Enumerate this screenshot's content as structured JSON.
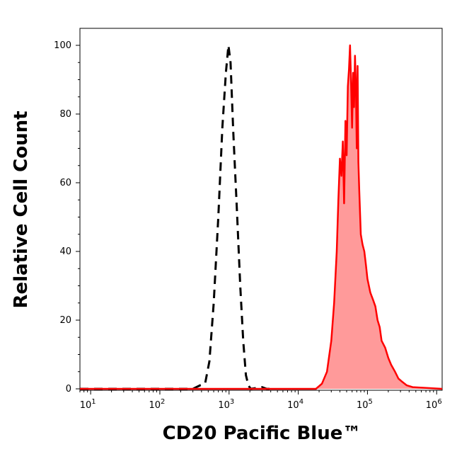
{
  "chart_data": {
    "type": "area",
    "title": "",
    "xlabel": "CD20 Pacific Blue™",
    "ylabel": "Relative Cell Count",
    "x_scale": "log",
    "xlim": [
      7,
      1200000
    ],
    "ylim": [
      0,
      104
    ],
    "x_ticks": [
      {
        "value": 10,
        "base": "10",
        "exp": "1"
      },
      {
        "value": 100,
        "base": "10",
        "exp": "2"
      },
      {
        "value": 1000,
        "base": "10",
        "exp": "3"
      },
      {
        "value": 10000,
        "base": "10",
        "exp": "4"
      },
      {
        "value": 100000,
        "base": "10",
        "exp": "5"
      },
      {
        "value": 1000000,
        "base": "10",
        "exp": "6"
      }
    ],
    "y_ticks": [
      {
        "value": 0,
        "label": "0"
      },
      {
        "value": 20,
        "label": "20"
      },
      {
        "value": 40,
        "label": "40"
      },
      {
        "value": 60,
        "label": "60"
      },
      {
        "value": 80,
        "label": "80"
      },
      {
        "value": 100,
        "label": "100"
      }
    ],
    "grid": false,
    "colors": {
      "control": "#000000",
      "stained_line": "#ff0000",
      "stained_fill": "#ff9a9a",
      "baseline": "#cc2222"
    },
    "series": [
      {
        "style": "dashed-black",
        "x": [
          7,
          300,
          380,
          450,
          520,
          600,
          700,
          800,
          900,
          980,
          1050,
          1150,
          1300,
          1450,
          1600,
          1750,
          1900,
          2050,
          3000,
          3500,
          4000
        ],
        "y": [
          0,
          0,
          1,
          1.5,
          8,
          25,
          50,
          76,
          92,
          100,
          95,
          75,
          52,
          30,
          14,
          4,
          1,
          0,
          0.5,
          0,
          0
        ]
      },
      {
        "style": "filled-red",
        "x": [
          7,
          18000,
          22000,
          26000,
          30000,
          33000,
          36000,
          38000,
          40000,
          42000,
          44000,
          46000,
          48000,
          50000,
          52000,
          54000,
          56000,
          58000,
          60000,
          62000,
          64000,
          66000,
          68000,
          70000,
          72000,
          74000,
          76000,
          80000,
          85000,
          90000,
          95000,
          100000,
          110000,
          120000,
          130000,
          140000,
          150000,
          160000,
          180000,
          200000,
          220000,
          250000,
          280000,
          320000,
          370000,
          450000,
          1200000
        ],
        "y": [
          0,
          0,
          1.5,
          5,
          14,
          25,
          40,
          55,
          67,
          62,
          72,
          54,
          78,
          68,
          88,
          93,
          100,
          89,
          76,
          92,
          82,
          97,
          88,
          70,
          94,
          66,
          58,
          45,
          42,
          40,
          36,
          32,
          28,
          26,
          24,
          20,
          18,
          14,
          12,
          9,
          7,
          5,
          3,
          2,
          1,
          0.5,
          0
        ]
      }
    ]
  }
}
